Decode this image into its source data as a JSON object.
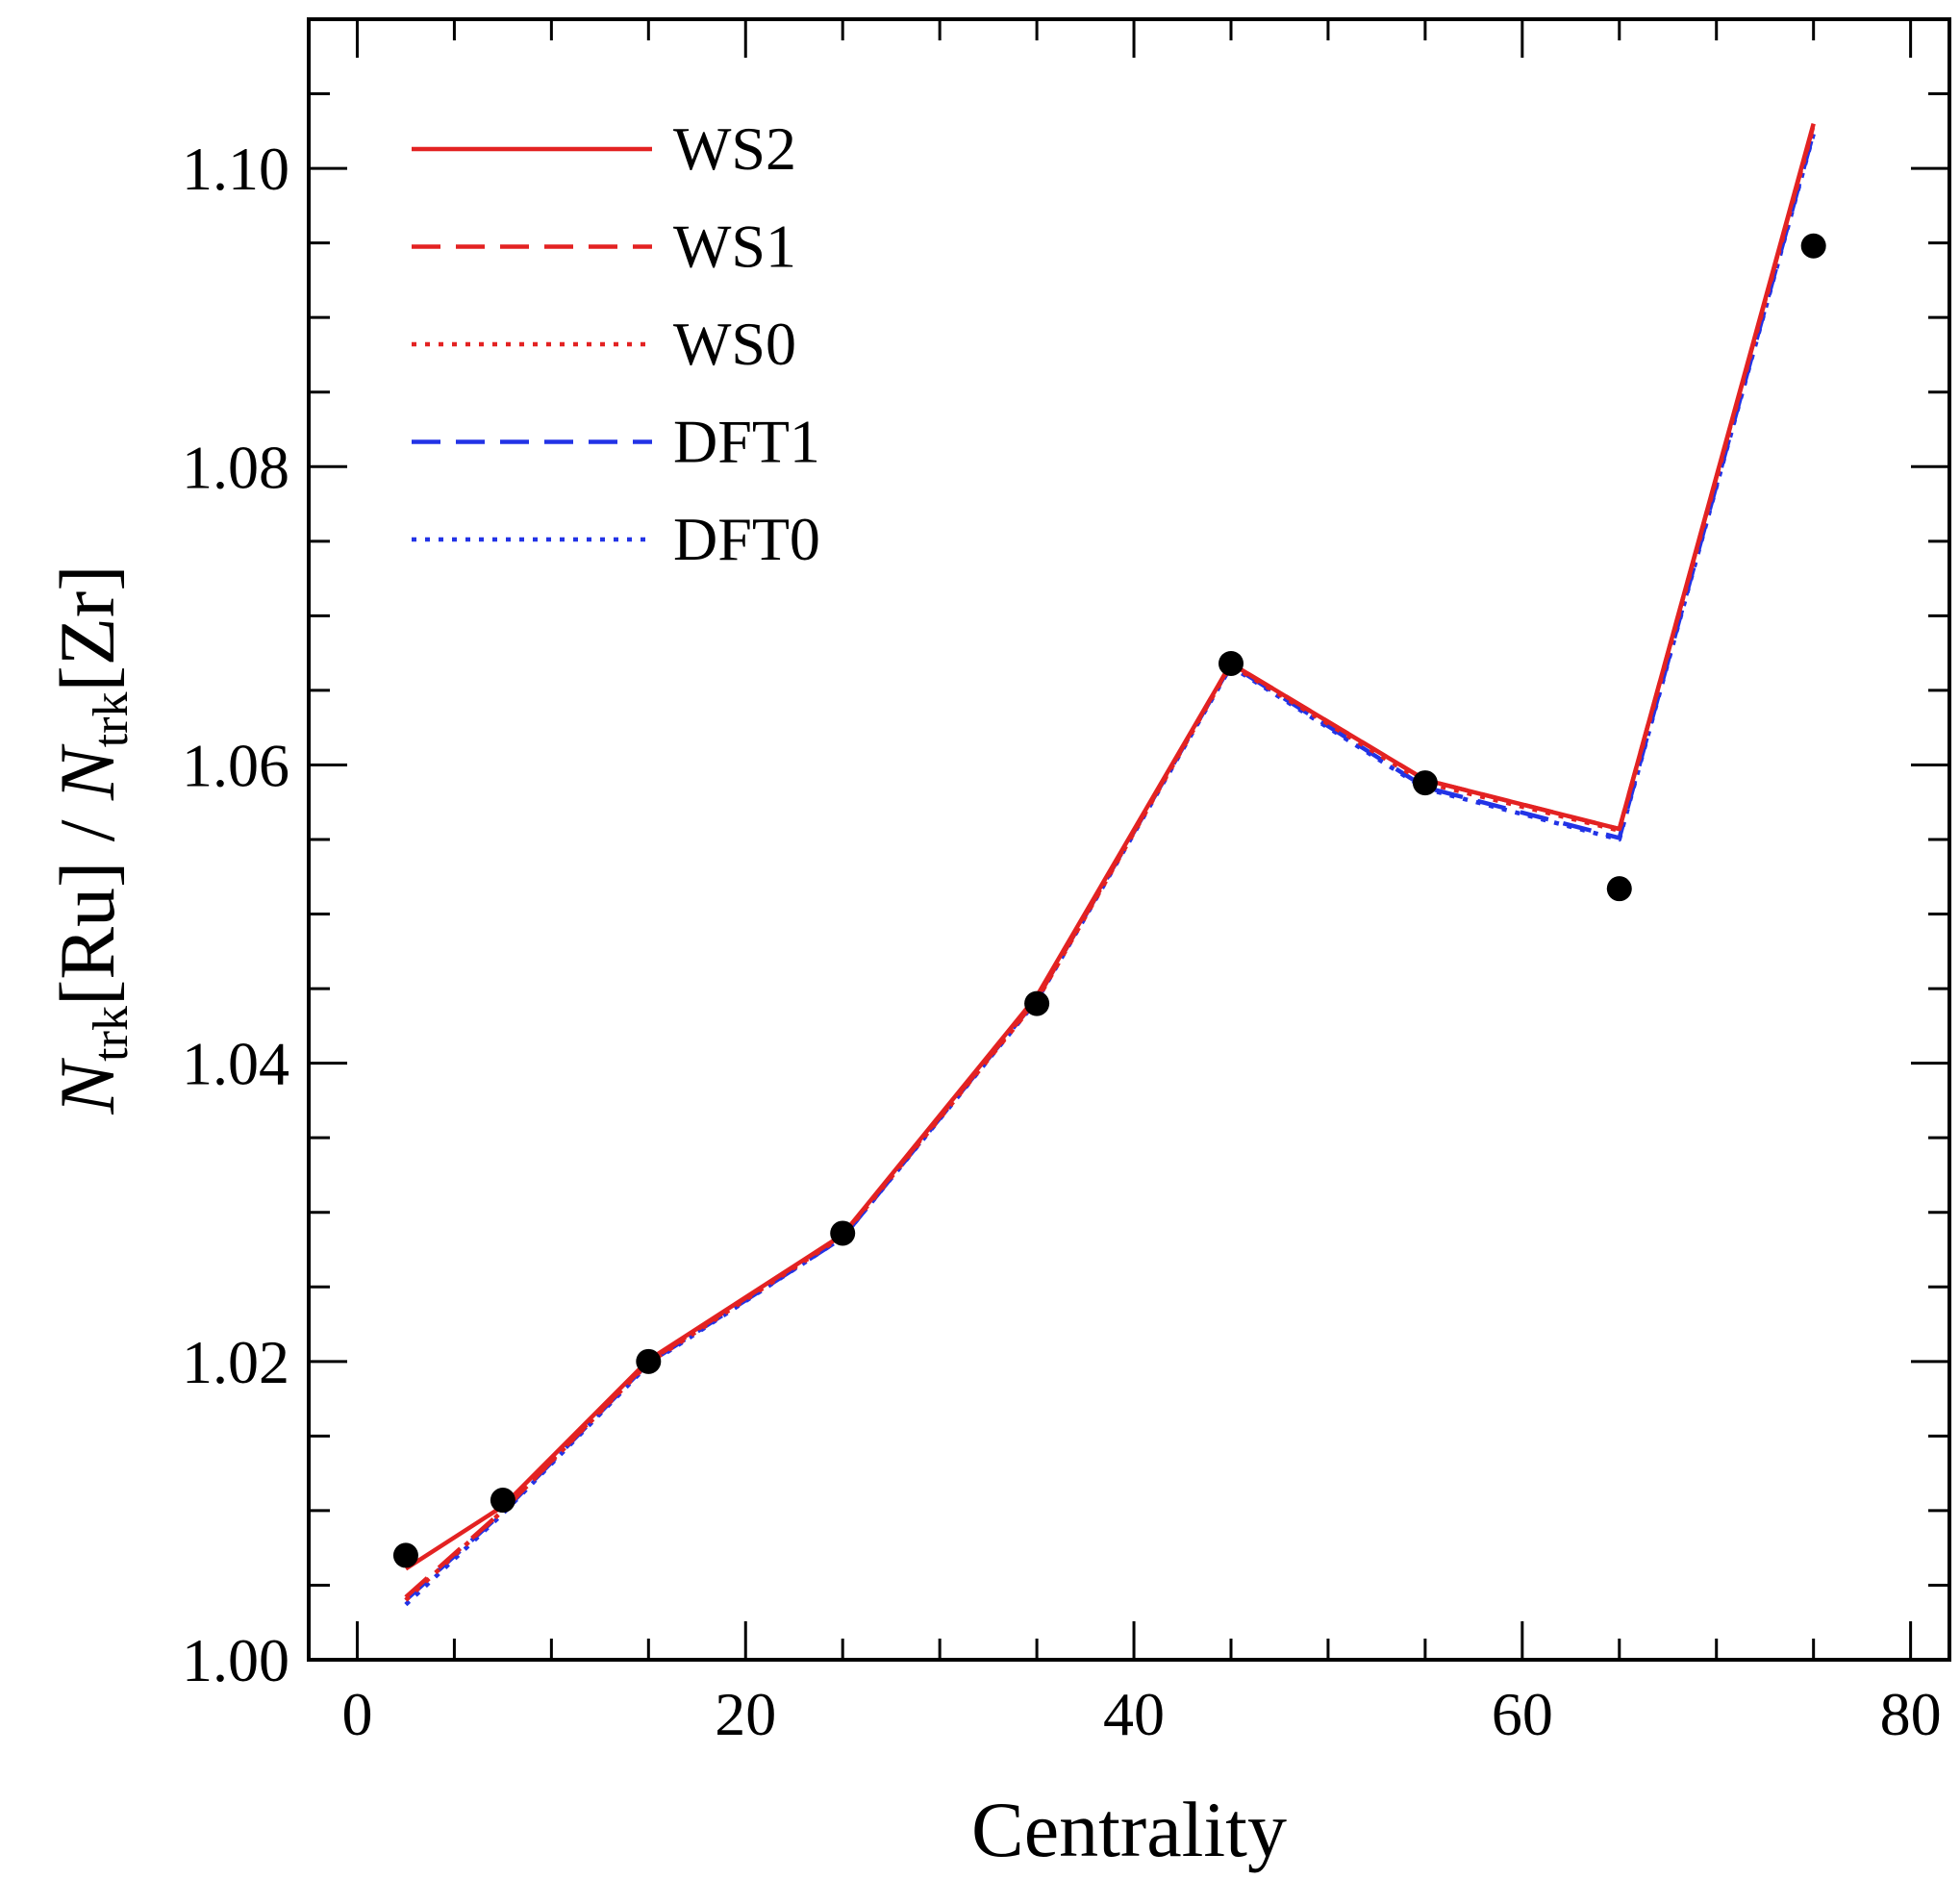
{
  "chart_data": {
    "type": "line",
    "xlabel": "Centrality",
    "ylabel": {
      "main1": "N",
      "sub1": "trk",
      "mid": "[Ru] / ",
      "main2": "N",
      "sub2": "trk",
      "end": "[Zr]"
    },
    "xlim": [
      -2.5,
      82
    ],
    "ylim": [
      1.0,
      1.11
    ],
    "x_ticks": [
      0,
      20,
      40,
      60,
      80
    ],
    "x_tick_labels": [
      "0",
      "20",
      "40",
      "60",
      "80"
    ],
    "y_ticks": [
      1.0,
      1.02,
      1.04,
      1.06,
      1.08,
      1.1
    ],
    "y_tick_labels": [
      "1.00",
      "1.02",
      "1.04",
      "1.06",
      "1.08",
      "1.10"
    ],
    "grid": false,
    "legend_position": "top-left",
    "data_points": {
      "x": [
        2.5,
        7.5,
        15,
        25,
        35,
        45,
        55,
        65,
        75
      ],
      "y": [
        1.007,
        1.0107,
        1.02,
        1.0286,
        1.044,
        1.0668,
        1.0588,
        1.0517,
        1.0948
      ],
      "color": "#000000"
    },
    "series": [
      {
        "name": "WS2",
        "color": "#e32222",
        "style": "solid",
        "x": [
          2.5,
          7.5,
          15,
          25,
          35,
          45,
          55,
          65,
          75
        ],
        "y": [
          1.0061,
          1.0103,
          1.0201,
          1.0285,
          1.0445,
          1.0668,
          1.059,
          1.0557,
          1.103
        ]
      },
      {
        "name": "WS1",
        "color": "#e32222",
        "style": "dashed",
        "x": [
          2.5,
          7.5,
          15,
          25,
          35,
          45,
          55,
          65,
          75
        ],
        "y": [
          1.0042,
          1.01,
          1.02,
          1.0285,
          1.0443,
          1.0668,
          1.059,
          1.0557,
          1.1029
        ]
      },
      {
        "name": "WS0",
        "color": "#e32222",
        "style": "dotted",
        "x": [
          2.5,
          7.5,
          15,
          25,
          35,
          45,
          55,
          65,
          75
        ],
        "y": [
          1.004,
          1.01,
          1.0199,
          1.0284,
          1.0442,
          1.0667,
          1.0588,
          1.0556,
          1.1028
        ]
      },
      {
        "name": "DFT1",
        "color": "#2233e6",
        "style": "dashed",
        "x": [
          2.5,
          7.5,
          15,
          25,
          35,
          45,
          55,
          65,
          75
        ],
        "y": [
          1.004,
          1.0099,
          1.0199,
          1.0283,
          1.0443,
          1.0667,
          1.0585,
          1.0551,
          1.1024
        ]
      },
      {
        "name": "DFT0",
        "color": "#2233e6",
        "style": "dotted",
        "x": [
          2.5,
          7.5,
          15,
          25,
          35,
          45,
          55,
          65,
          75
        ],
        "y": [
          1.0037,
          1.0098,
          1.0198,
          1.0283,
          1.0442,
          1.0666,
          1.0584,
          1.055,
          1.1023
        ]
      }
    ]
  }
}
